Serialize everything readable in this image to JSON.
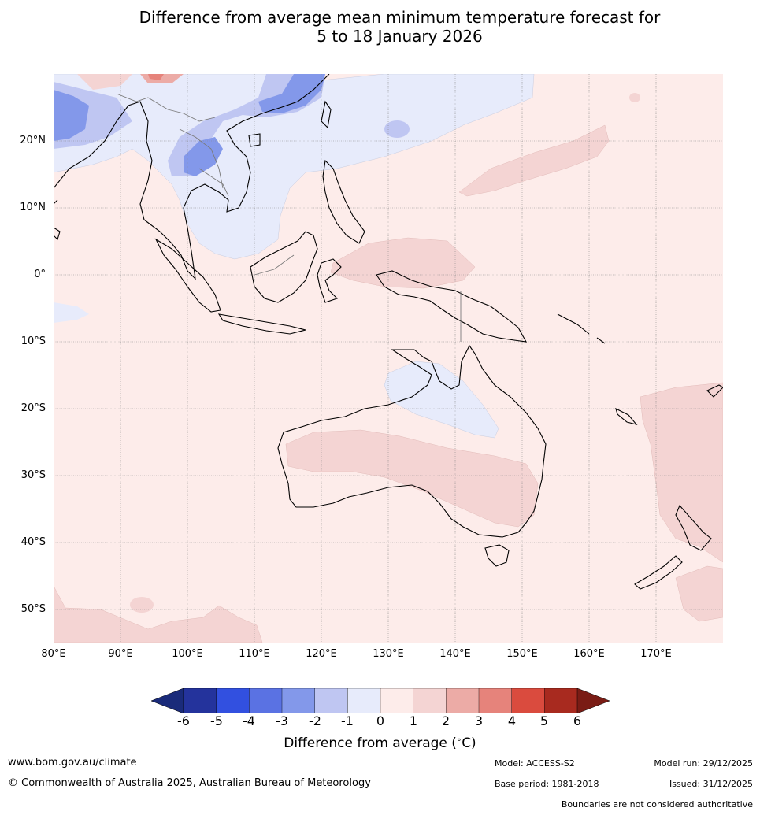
{
  "title_line1": "Difference from average mean minimum temperature forecast for",
  "title_line2": "5 to 18 January 2026",
  "map": {
    "lat_labels": [
      "20°N",
      "10°N",
      "0°",
      "10°S",
      "20°S",
      "30°S",
      "40°S",
      "50°S"
    ],
    "lon_labels": [
      "80°E",
      "90°E",
      "100°E",
      "110°E",
      "120°E",
      "130°E",
      "140°E",
      "150°E",
      "160°E",
      "170°E"
    ],
    "extent": {
      "lon_min": 80,
      "lon_max": 180,
      "lat_min": -55,
      "lat_max": 30
    }
  },
  "colorbar": {
    "ticks": [
      "-6",
      "-5",
      "-4",
      "-3",
      "-2",
      "-1",
      "0",
      "1",
      "2",
      "3",
      "4",
      "5",
      "6"
    ],
    "colors": [
      "#24339c",
      "#3250e0",
      "#5a72e3",
      "#8398ea",
      "#bfc6f2",
      "#e7ebfb",
      "#fdecea",
      "#f4d4d3",
      "#ecaba6",
      "#e6837b",
      "#da4b3e",
      "#a82a1f"
    ],
    "under_color": "#1a2b7a",
    "over_color": "#7a1c15",
    "label": "Difference from average ($^\\circ$C)",
    "label_text": "Difference from average (",
    "label_unit": "C)"
  },
  "footer": {
    "website": "www.bom.gov.au/climate",
    "copyright": "© Commonwealth of Australia 2025, Australian Bureau of Meteorology",
    "model": "Model: ACCESS-S2",
    "base_period": "Base period: 1981-2018",
    "model_run": "Model run: 29/12/2025",
    "issued": "Issued: 31/12/2025",
    "disclaimer": "Boundaries are not considered authoritative"
  }
}
